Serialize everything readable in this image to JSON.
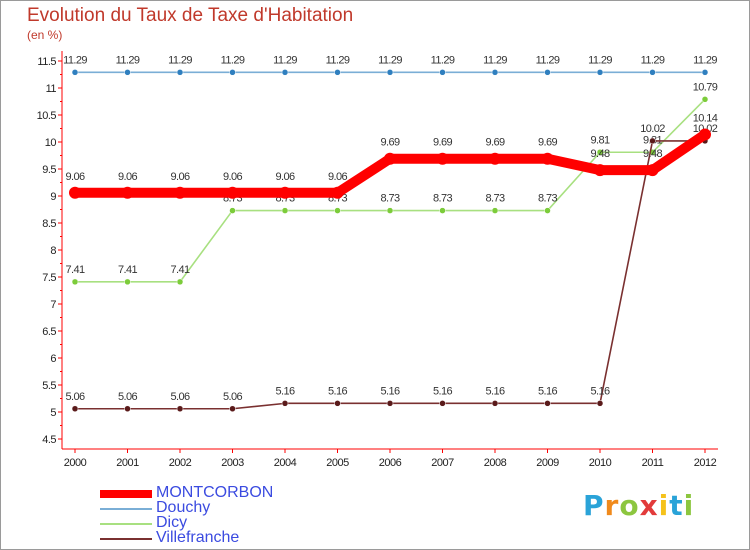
{
  "header": {
    "title": "Evolution du Taux de Taxe d'Habitation",
    "unit": "(en %)"
  },
  "logo": {
    "letters": [
      "P",
      "r",
      "o",
      "x",
      "i",
      "t",
      "i"
    ],
    "colors": [
      "#2aa3d8",
      "#f08a1c",
      "#8cc63f",
      "#e23b3b",
      "#f5c21b",
      "#2aa3d8",
      "#8cc63f"
    ]
  },
  "chart_data": {
    "type": "line",
    "title": "Evolution du Taux de Taxe d'Habitation",
    "ylabel": "(en %)",
    "xlabel": "",
    "ylim": [
      4.5,
      11.5
    ],
    "yticks": [
      "4.5",
      "5",
      "5.5",
      "6",
      "6.5",
      "7",
      "7.5",
      "8",
      "8.5",
      "9",
      "9.5",
      "10",
      "10.5",
      "11",
      "11.5"
    ],
    "x": [
      "2000",
      "2001",
      "2002",
      "2003",
      "2004",
      "2005",
      "2006",
      "2007",
      "2008",
      "2009",
      "2010",
      "2011",
      "2012"
    ],
    "grid": false,
    "legend_position": "bottom-left",
    "series": [
      {
        "name": "Douchy",
        "color": "#7aaed6",
        "marker": "#2f7fbf",
        "values": [
          11.29,
          11.29,
          11.29,
          11.29,
          11.29,
          11.29,
          11.29,
          11.29,
          11.29,
          11.29,
          11.29,
          11.29,
          11.29
        ],
        "labels": [
          "11.29",
          "11.29",
          "11.29",
          "11.29",
          "11.29",
          "11.29",
          "11.29",
          "11.29",
          "11.29",
          "11.29",
          "11.29",
          "11.29",
          "11.29"
        ]
      },
      {
        "name": "Dicy",
        "color": "#a8e080",
        "marker": "#7ccc3a",
        "values": [
          7.41,
          7.41,
          7.41,
          8.73,
          8.73,
          8.73,
          8.73,
          8.73,
          8.73,
          8.73,
          9.81,
          9.81,
          10.79
        ],
        "labels": [
          "7.41",
          "7.41",
          "7.41",
          "8.73",
          "8.73",
          "8.73",
          "8.73",
          "8.73",
          "8.73",
          "8.73",
          "9.81",
          "9.81",
          "10.79"
        ]
      },
      {
        "name": "Villefranche",
        "color": "#7a3030",
        "marker": "#5a1a1a",
        "values": [
          5.06,
          5.06,
          5.06,
          5.06,
          5.16,
          5.16,
          5.16,
          5.16,
          5.16,
          5.16,
          5.16,
          10.02,
          10.02
        ],
        "labels": [
          "5.06",
          "5.06",
          "5.06",
          "5.06",
          "5.16",
          "5.16",
          "5.16",
          "5.16",
          "5.16",
          "5.16",
          "5.16",
          "10.02",
          "10.02"
        ]
      },
      {
        "name": "MONTCORBON",
        "color": "#ff0000",
        "marker": "#ff0000",
        "values": [
          9.06,
          9.06,
          9.06,
          9.06,
          9.06,
          9.06,
          9.69,
          9.69,
          9.69,
          9.69,
          9.48,
          9.48,
          10.14
        ],
        "labels": [
          "9.06",
          "9.06",
          "9.06",
          "9.06",
          "9.06",
          "9.06",
          "9.69",
          "9.69",
          "9.69",
          "9.69",
          "9.48",
          "9.48",
          "10.14"
        ]
      }
    ],
    "legend": [
      "MONTCORBON",
      "Douchy",
      "Dicy",
      "Villefranche"
    ]
  }
}
